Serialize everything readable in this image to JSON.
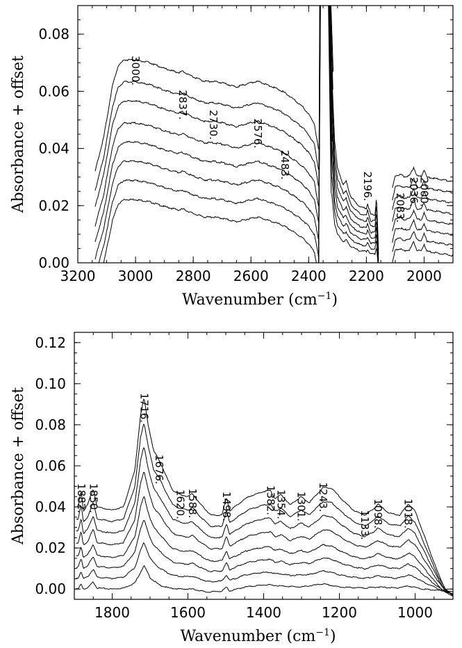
{
  "chart_data": [
    {
      "type": "line",
      "id": "top",
      "xlabel": "Wavenumber (cm",
      "xlabel_sup": "−1",
      "xlabel_end": ")",
      "ylabel": "Absorbance + offset",
      "xlim": [
        3200,
        1900
      ],
      "ylim": [
        0.0,
        0.09
      ],
      "xticks": [
        3200,
        3000,
        2800,
        2600,
        2400,
        2200,
        2000
      ],
      "xtick_labels": [
        "3200",
        "3000",
        "2800",
        "2600",
        "2400",
        "2200",
        "2000"
      ],
      "yticks": [
        0.0,
        0.02,
        0.04,
        0.06,
        0.08
      ],
      "ytick_labels": [
        "0.00",
        "0.02",
        "0.04",
        "0.06",
        "0.08"
      ],
      "offsets": [
        0.0,
        0.006,
        0.012,
        0.018,
        0.024,
        0.031,
        0.037,
        0.044
      ],
      "base_profile": [
        [
          3140,
          -0.012
        ],
        [
          3110,
          0.0
        ],
        [
          3080,
          0.018
        ],
        [
          3060,
          0.025
        ],
        [
          3040,
          0.027
        ],
        [
          3000,
          0.027
        ],
        [
          2950,
          0.026
        ],
        [
          2900,
          0.024
        ],
        [
          2850,
          0.0225
        ],
        [
          2837,
          0.023
        ],
        [
          2800,
          0.021
        ],
        [
          2760,
          0.0195
        ],
        [
          2730,
          0.0195
        ],
        [
          2700,
          0.019
        ],
        [
          2650,
          0.0175
        ],
        [
          2600,
          0.019
        ],
        [
          2576,
          0.0195
        ],
        [
          2550,
          0.0185
        ],
        [
          2500,
          0.0165
        ],
        [
          2483,
          0.0155
        ],
        [
          2450,
          0.013
        ],
        [
          2420,
          0.0105
        ],
        [
          2400,
          0.008
        ],
        [
          2380,
          0.0045
        ],
        [
          2365,
          -0.005
        ]
      ],
      "co2_region": [
        2365,
        2330
      ],
      "mid_profile": [
        [
          2320,
          0.044
        ],
        [
          2310,
          0.025
        ],
        [
          2300,
          0.018
        ],
        [
          2280,
          0.0135
        ],
        [
          2270,
          0.0145
        ],
        [
          2255,
          0.0105
        ],
        [
          2240,
          0.009
        ],
        [
          2220,
          0.0075
        ],
        [
          2200,
          0.0072
        ],
        [
          2196,
          0.0085
        ],
        [
          2185,
          0.0055
        ],
        [
          2170,
          0.0055
        ],
        [
          2165,
          0.0105
        ],
        [
          2158,
          -0.004
        ]
      ],
      "right_profile": [
        [
          2110,
          0.0
        ],
        [
          2100,
          0.0045
        ],
        [
          2083,
          0.005
        ],
        [
          2070,
          0.0042
        ],
        [
          2050,
          0.0045
        ],
        [
          2036,
          0.0075
        ],
        [
          2025,
          0.0044
        ],
        [
          2010,
          0.0042
        ],
        [
          2000,
          0.0065
        ],
        [
          1990,
          0.004
        ],
        [
          1960,
          0.0035
        ],
        [
          1930,
          0.003
        ],
        [
          1900,
          0.0025
        ]
      ],
      "peak_labels": [
        {
          "text": "3000",
          "x": 3000,
          "y": 0.0725
        },
        {
          "text": "2837",
          "x": 2837,
          "y": 0.0605
        },
        {
          "text": "2730",
          "x": 2730,
          "y": 0.0535
        },
        {
          "text": "2576",
          "x": 2576,
          "y": 0.0505
        },
        {
          "text": "2483",
          "x": 2483,
          "y": 0.0395
        },
        {
          "text": "2196",
          "x": 2196,
          "y": 0.032
        },
        {
          "text": "2083",
          "x": 2083,
          "y": 0.0245
        },
        {
          "text": "2036",
          "x": 2036,
          "y": 0.03
        },
        {
          "text": "2000",
          "x": 2000,
          "y": 0.03
        }
      ]
    },
    {
      "type": "line",
      "id": "bottom",
      "xlabel": "Wavenumber (cm",
      "xlabel_sup": "−1",
      "xlabel_end": ")",
      "ylabel": "Absorbance + offset",
      "xlim": [
        1900,
        900
      ],
      "ylim": [
        -0.005,
        0.125
      ],
      "xticks": [
        1800,
        1600,
        1400,
        1200,
        1000
      ],
      "xtick_labels": [
        "1800",
        "1600",
        "1400",
        "1200",
        "1000"
      ],
      "yticks": [
        0.0,
        0.02,
        0.04,
        0.06,
        0.08,
        0.1,
        0.12
      ],
      "ytick_labels": [
        "0.00",
        "0.02",
        "0.04",
        "0.06",
        "0.08",
        "0.10",
        "0.12"
      ],
      "offsets": [
        0.0,
        0.0055,
        0.011,
        0.0165,
        0.023,
        0.029,
        0.035,
        0.041
      ],
      "base_profile": [
        [
          1890,
          0.0
        ],
        [
          1882,
          0.0025
        ],
        [
          1876,
          0.0
        ],
        [
          1865,
          0.0005
        ],
        [
          1850,
          0.0035
        ],
        [
          1840,
          0.0005
        ],
        [
          1800,
          0.0
        ],
        [
          1770,
          0.0005
        ],
        [
          1740,
          0.003
        ],
        [
          1716,
          0.0115
        ],
        [
          1700,
          0.0055
        ],
        [
          1676,
          0.002
        ],
        [
          1650,
          0.0005
        ],
        [
          1620,
          0.0
        ],
        [
          1588,
          0.0
        ],
        [
          1550,
          -0.0015
        ],
        [
          1510,
          -0.001
        ],
        [
          1498,
          0.001
        ],
        [
          1490,
          -0.001
        ],
        [
          1450,
          0.001
        ],
        [
          1400,
          0.002
        ],
        [
          1382,
          0.002
        ],
        [
          1354,
          0.0015
        ],
        [
          1301,
          0.001
        ],
        [
          1243,
          0.0025
        ],
        [
          1200,
          0.001
        ],
        [
          1133,
          0.0005
        ],
        [
          1098,
          0.001
        ],
        [
          1050,
          0.0005
        ],
        [
          1018,
          0.0015
        ],
        [
          980,
          0.0
        ],
        [
          950,
          -0.0005
        ],
        [
          920,
          -0.001
        ],
        [
          900,
          -0.0015
        ]
      ],
      "top_profile": [
        [
          1890,
          0.04
        ],
        [
          1882,
          0.048
        ],
        [
          1876,
          0.038
        ],
        [
          1865,
          0.041
        ],
        [
          1850,
          0.049
        ],
        [
          1840,
          0.04
        ],
        [
          1800,
          0.0385
        ],
        [
          1770,
          0.04
        ],
        [
          1740,
          0.058
        ],
        [
          1725,
          0.085
        ],
        [
          1716,
          0.093
        ],
        [
          1705,
          0.08
        ],
        [
          1690,
          0.067
        ],
        [
          1676,
          0.063
        ],
        [
          1660,
          0.056
        ],
        [
          1640,
          0.048
        ],
        [
          1620,
          0.046
        ],
        [
          1600,
          0.045
        ],
        [
          1588,
          0.0465
        ],
        [
          1570,
          0.042
        ],
        [
          1540,
          0.036
        ],
        [
          1510,
          0.036
        ],
        [
          1498,
          0.045
        ],
        [
          1490,
          0.038
        ],
        [
          1470,
          0.041
        ],
        [
          1440,
          0.045
        ],
        [
          1400,
          0.0475
        ],
        [
          1382,
          0.048
        ],
        [
          1370,
          0.044
        ],
        [
          1354,
          0.046
        ],
        [
          1330,
          0.041
        ],
        [
          1301,
          0.045
        ],
        [
          1280,
          0.042
        ],
        [
          1243,
          0.0495
        ],
        [
          1220,
          0.049
        ],
        [
          1190,
          0.043
        ],
        [
          1160,
          0.038
        ],
        [
          1133,
          0.036
        ],
        [
          1110,
          0.039
        ],
        [
          1098,
          0.0415
        ],
        [
          1070,
          0.037
        ],
        [
          1040,
          0.036
        ],
        [
          1018,
          0.0415
        ],
        [
          1000,
          0.038
        ],
        [
          980,
          0.028
        ],
        [
          960,
          0.018
        ],
        [
          940,
          0.008
        ],
        [
          920,
          0.0
        ],
        [
          900,
          -0.003
        ]
      ],
      "peak_labels": [
        {
          "text": "1882",
          "x": 1882,
          "y": 0.0515
        },
        {
          "text": "1850",
          "x": 1850,
          "y": 0.0515
        },
        {
          "text": "1716",
          "x": 1716,
          "y": 0.0955
        },
        {
          "text": "1676",
          "x": 1676,
          "y": 0.0655
        },
        {
          "text": "1620",
          "x": 1620,
          "y": 0.0485
        },
        {
          "text": "1588",
          "x": 1588,
          "y": 0.049
        },
        {
          "text": "1498",
          "x": 1498,
          "y": 0.0475
        },
        {
          "text": "1382",
          "x": 1382,
          "y": 0.0505
        },
        {
          "text": "1354",
          "x": 1354,
          "y": 0.0485
        },
        {
          "text": "1301",
          "x": 1301,
          "y": 0.0475
        },
        {
          "text": "1243",
          "x": 1243,
          "y": 0.052
        },
        {
          "text": "1133",
          "x": 1133,
          "y": 0.0385
        },
        {
          "text": "1098",
          "x": 1098,
          "y": 0.044
        },
        {
          "text": "1018",
          "x": 1018,
          "y": 0.044
        }
      ]
    }
  ]
}
